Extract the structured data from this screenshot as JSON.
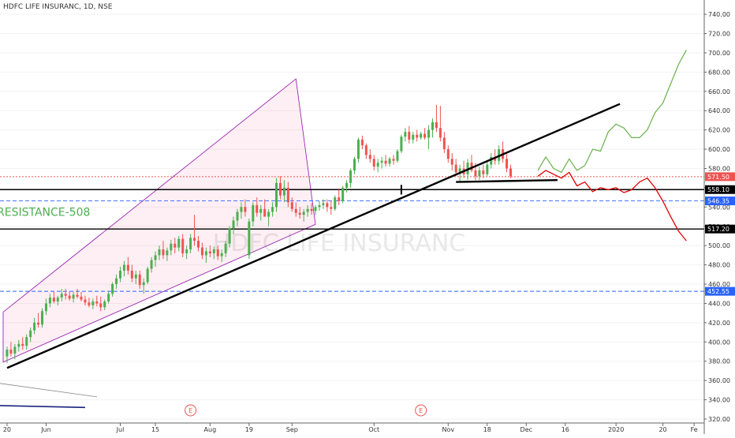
{
  "chart_data": {
    "type": "candlestick",
    "title": "HDFC LIFE INSURANC, 1D, NSE",
    "watermark": "HDFC LIFE INSURANC",
    "y_range": [
      315,
      750
    ],
    "y_ticks": [
      320,
      340,
      360,
      380,
      400,
      420,
      440,
      460,
      480,
      500,
      520,
      540,
      560,
      580,
      600,
      620,
      640,
      660,
      680,
      700,
      720,
      740
    ],
    "x_labels": [
      {
        "t": 0,
        "label": "20"
      },
      {
        "t": 10,
        "label": "Jun"
      },
      {
        "t": 29,
        "label": "Jul"
      },
      {
        "t": 38,
        "label": "15"
      },
      {
        "t": 52,
        "label": "Aug"
      },
      {
        "t": 62,
        "label": "19"
      },
      {
        "t": 73,
        "label": "Sep"
      },
      {
        "t": 94,
        "label": "Oct"
      },
      {
        "t": 113,
        "label": "Nov"
      },
      {
        "t": 123,
        "label": "18"
      },
      {
        "t": 133,
        "label": "Dec"
      },
      {
        "t": 143,
        "label": "16"
      },
      {
        "t": 156,
        "label": "2020"
      },
      {
        "t": 168,
        "label": "20"
      },
      {
        "t": 176,
        "label": "Fe"
      }
    ],
    "price_tags": [
      {
        "value": 571.5,
        "label": "571.50",
        "color": "#ef5350",
        "style": "dotted"
      },
      {
        "value": 558.1,
        "label": "558.10",
        "color": "#000000",
        "style": "solid"
      },
      {
        "value": 546.35,
        "label": "546.35",
        "color": "#2962ff",
        "style": "dashed"
      },
      {
        "value": 517.2,
        "label": "517.20",
        "color": "#000000",
        "style": "solid"
      },
      {
        "value": 452.55,
        "label": "452.55",
        "color": "#2962ff",
        "style": "dashed"
      }
    ],
    "annotations": {
      "resistance_text": "RESISTANCE-508",
      "earnings_markers": [
        {
          "t": 47,
          "label": "E"
        },
        {
          "t": 106,
          "label": "E"
        }
      ]
    },
    "colors": {
      "up": "#26a69a",
      "down": "#ef5350",
      "bull_path": "#6ab04c",
      "bear_path": "#e00000",
      "channel": "#9c27b0",
      "text_green": "#4caf50"
    },
    "candles": [
      {
        "o": 385,
        "h": 395,
        "l": 378,
        "c": 392
      },
      {
        "o": 392,
        "h": 400,
        "l": 385,
        "c": 388
      },
      {
        "o": 388,
        "h": 398,
        "l": 382,
        "c": 395
      },
      {
        "o": 395,
        "h": 402,
        "l": 390,
        "c": 398
      },
      {
        "o": 398,
        "h": 405,
        "l": 392,
        "c": 396
      },
      {
        "o": 396,
        "h": 408,
        "l": 392,
        "c": 405
      },
      {
        "o": 405,
        "h": 415,
        "l": 400,
        "c": 412
      },
      {
        "o": 412,
        "h": 425,
        "l": 408,
        "c": 420
      },
      {
        "o": 420,
        "h": 430,
        "l": 415,
        "c": 418
      },
      {
        "o": 418,
        "h": 435,
        "l": 415,
        "c": 432
      },
      {
        "o": 432,
        "h": 445,
        "l": 428,
        "c": 440
      },
      {
        "o": 440,
        "h": 450,
        "l": 436,
        "c": 446
      },
      {
        "o": 446,
        "h": 452,
        "l": 440,
        "c": 442
      },
      {
        "o": 442,
        "h": 448,
        "l": 438,
        "c": 446
      },
      {
        "o": 446,
        "h": 455,
        "l": 442,
        "c": 450
      },
      {
        "o": 450,
        "h": 455,
        "l": 444,
        "c": 448
      },
      {
        "o": 448,
        "h": 453,
        "l": 443,
        "c": 445
      },
      {
        "o": 445,
        "h": 452,
        "l": 441,
        "c": 449
      },
      {
        "o": 449,
        "h": 455,
        "l": 445,
        "c": 447
      },
      {
        "o": 447,
        "h": 452,
        "l": 442,
        "c": 444
      },
      {
        "o": 444,
        "h": 448,
        "l": 438,
        "c": 441
      },
      {
        "o": 441,
        "h": 446,
        "l": 436,
        "c": 438
      },
      {
        "o": 438,
        "h": 445,
        "l": 434,
        "c": 442
      },
      {
        "o": 442,
        "h": 448,
        "l": 437,
        "c": 440
      },
      {
        "o": 440,
        "h": 447,
        "l": 432,
        "c": 436
      },
      {
        "o": 436,
        "h": 444,
        "l": 433,
        "c": 442
      },
      {
        "o": 442,
        "h": 452,
        "l": 440,
        "c": 450
      },
      {
        "o": 450,
        "h": 462,
        "l": 447,
        "c": 460
      },
      {
        "o": 460,
        "h": 470,
        "l": 455,
        "c": 466
      },
      {
        "o": 466,
        "h": 478,
        "l": 462,
        "c": 474
      },
      {
        "o": 474,
        "h": 484,
        "l": 468,
        "c": 480
      },
      {
        "o": 480,
        "h": 488,
        "l": 470,
        "c": 474
      },
      {
        "o": 474,
        "h": 480,
        "l": 462,
        "c": 466
      },
      {
        "o": 466,
        "h": 474,
        "l": 460,
        "c": 470
      },
      {
        "o": 470,
        "h": 474,
        "l": 455,
        "c": 459
      },
      {
        "o": 459,
        "h": 466,
        "l": 450,
        "c": 462
      },
      {
        "o": 462,
        "h": 478,
        "l": 460,
        "c": 476
      },
      {
        "o": 476,
        "h": 488,
        "l": 472,
        "c": 485
      },
      {
        "o": 485,
        "h": 494,
        "l": 478,
        "c": 490
      },
      {
        "o": 490,
        "h": 500,
        "l": 485,
        "c": 496
      },
      {
        "o": 496,
        "h": 505,
        "l": 486,
        "c": 490
      },
      {
        "o": 490,
        "h": 498,
        "l": 484,
        "c": 495
      },
      {
        "o": 495,
        "h": 506,
        "l": 490,
        "c": 502
      },
      {
        "o": 502,
        "h": 508,
        "l": 492,
        "c": 498
      },
      {
        "o": 498,
        "h": 510,
        "l": 494,
        "c": 507
      },
      {
        "o": 507,
        "h": 512,
        "l": 488,
        "c": 492
      },
      {
        "o": 492,
        "h": 500,
        "l": 486,
        "c": 496
      },
      {
        "o": 496,
        "h": 512,
        "l": 492,
        "c": 508
      },
      {
        "o": 508,
        "h": 532,
        "l": 500,
        "c": 505
      },
      {
        "o": 505,
        "h": 510,
        "l": 494,
        "c": 498
      },
      {
        "o": 498,
        "h": 503,
        "l": 486,
        "c": 490
      },
      {
        "o": 490,
        "h": 498,
        "l": 482,
        "c": 494
      },
      {
        "o": 494,
        "h": 500,
        "l": 488,
        "c": 492
      },
      {
        "o": 492,
        "h": 499,
        "l": 486,
        "c": 496
      },
      {
        "o": 496,
        "h": 500,
        "l": 485,
        "c": 489
      },
      {
        "o": 489,
        "h": 496,
        "l": 483,
        "c": 492
      },
      {
        "o": 492,
        "h": 505,
        "l": 488,
        "c": 502
      },
      {
        "o": 502,
        "h": 520,
        "l": 498,
        "c": 518
      },
      {
        "o": 518,
        "h": 530,
        "l": 512,
        "c": 526
      },
      {
        "o": 526,
        "h": 538,
        "l": 520,
        "c": 535
      },
      {
        "o": 535,
        "h": 545,
        "l": 528,
        "c": 540
      },
      {
        "o": 540,
        "h": 548,
        "l": 530,
        "c": 535
      },
      {
        "o": 490,
        "h": 528,
        "l": 486,
        "c": 525
      },
      {
        "o": 525,
        "h": 545,
        "l": 520,
        "c": 542
      },
      {
        "o": 542,
        "h": 550,
        "l": 530,
        "c": 534
      },
      {
        "o": 534,
        "h": 542,
        "l": 526,
        "c": 538
      },
      {
        "o": 538,
        "h": 548,
        "l": 532,
        "c": 530
      },
      {
        "o": 530,
        "h": 538,
        "l": 520,
        "c": 535
      },
      {
        "o": 535,
        "h": 545,
        "l": 530,
        "c": 540
      },
      {
        "o": 540,
        "h": 570,
        "l": 535,
        "c": 565
      },
      {
        "o": 565,
        "h": 572,
        "l": 548,
        "c": 552
      },
      {
        "o": 552,
        "h": 568,
        "l": 545,
        "c": 560
      },
      {
        "o": 560,
        "h": 566,
        "l": 540,
        "c": 545
      },
      {
        "o": 545,
        "h": 550,
        "l": 535,
        "c": 538
      },
      {
        "o": 538,
        "h": 545,
        "l": 530,
        "c": 534
      },
      {
        "o": 534,
        "h": 540,
        "l": 528,
        "c": 532
      },
      {
        "o": 532,
        "h": 538,
        "l": 525,
        "c": 535
      },
      {
        "o": 535,
        "h": 542,
        "l": 530,
        "c": 538
      },
      {
        "o": 538,
        "h": 544,
        "l": 532,
        "c": 536
      },
      {
        "o": 536,
        "h": 542,
        "l": 532,
        "c": 540
      },
      {
        "o": 540,
        "h": 546,
        "l": 536,
        "c": 542
      },
      {
        "o": 542,
        "h": 548,
        "l": 538,
        "c": 544
      },
      {
        "o": 544,
        "h": 548,
        "l": 535,
        "c": 540
      },
      {
        "o": 540,
        "h": 546,
        "l": 532,
        "c": 538
      },
      {
        "o": 538,
        "h": 552,
        "l": 536,
        "c": 550
      },
      {
        "o": 550,
        "h": 558,
        "l": 542,
        "c": 546
      },
      {
        "o": 546,
        "h": 562,
        "l": 544,
        "c": 560
      },
      {
        "o": 560,
        "h": 568,
        "l": 555,
        "c": 565
      },
      {
        "o": 565,
        "h": 580,
        "l": 560,
        "c": 578
      },
      {
        "o": 578,
        "h": 592,
        "l": 574,
        "c": 590
      },
      {
        "o": 590,
        "h": 612,
        "l": 586,
        "c": 610
      },
      {
        "o": 610,
        "h": 614,
        "l": 600,
        "c": 604
      },
      {
        "o": 604,
        "h": 606,
        "l": 590,
        "c": 594
      },
      {
        "o": 594,
        "h": 600,
        "l": 586,
        "c": 590
      },
      {
        "o": 590,
        "h": 594,
        "l": 578,
        "c": 582
      },
      {
        "o": 582,
        "h": 590,
        "l": 576,
        "c": 586
      },
      {
        "o": 586,
        "h": 592,
        "l": 580,
        "c": 588
      },
      {
        "o": 588,
        "h": 594,
        "l": 582,
        "c": 585
      },
      {
        "o": 585,
        "h": 592,
        "l": 582,
        "c": 590
      },
      {
        "o": 590,
        "h": 594,
        "l": 584,
        "c": 588
      },
      {
        "o": 588,
        "h": 600,
        "l": 586,
        "c": 598
      },
      {
        "o": 598,
        "h": 615,
        "l": 596,
        "c": 613
      },
      {
        "o": 613,
        "h": 622,
        "l": 608,
        "c": 618
      },
      {
        "o": 618,
        "h": 624,
        "l": 606,
        "c": 610
      },
      {
        "o": 610,
        "h": 618,
        "l": 606,
        "c": 615
      },
      {
        "o": 615,
        "h": 620,
        "l": 608,
        "c": 612
      },
      {
        "o": 612,
        "h": 618,
        "l": 610,
        "c": 616
      },
      {
        "o": 616,
        "h": 622,
        "l": 610,
        "c": 612
      },
      {
        "o": 612,
        "h": 625,
        "l": 600,
        "c": 620
      },
      {
        "o": 620,
        "h": 632,
        "l": 612,
        "c": 628
      },
      {
        "o": 628,
        "h": 646,
        "l": 618,
        "c": 622
      },
      {
        "o": 622,
        "h": 645,
        "l": 608,
        "c": 612
      },
      {
        "o": 612,
        "h": 618,
        "l": 596,
        "c": 600
      },
      {
        "o": 600,
        "h": 604,
        "l": 586,
        "c": 590
      },
      {
        "o": 590,
        "h": 596,
        "l": 578,
        "c": 584
      },
      {
        "o": 584,
        "h": 590,
        "l": 572,
        "c": 576
      },
      {
        "o": 576,
        "h": 584,
        "l": 566,
        "c": 580
      },
      {
        "o": 580,
        "h": 588,
        "l": 570,
        "c": 574
      },
      {
        "o": 574,
        "h": 590,
        "l": 568,
        "c": 586
      },
      {
        "o": 586,
        "h": 594,
        "l": 576,
        "c": 578
      },
      {
        "o": 578,
        "h": 586,
        "l": 568,
        "c": 572
      },
      {
        "o": 572,
        "h": 582,
        "l": 568,
        "c": 578
      },
      {
        "o": 578,
        "h": 584,
        "l": 570,
        "c": 574
      },
      {
        "o": 574,
        "h": 588,
        "l": 572,
        "c": 584
      },
      {
        "o": 584,
        "h": 596,
        "l": 580,
        "c": 592
      },
      {
        "o": 592,
        "h": 600,
        "l": 584,
        "c": 588
      },
      {
        "o": 588,
        "h": 604,
        "l": 584,
        "c": 600
      },
      {
        "o": 600,
        "h": 608,
        "l": 586,
        "c": 590
      },
      {
        "o": 590,
        "h": 595,
        "l": 576,
        "c": 580
      },
      {
        "o": 580,
        "h": 584,
        "l": 570,
        "c": 572
      }
    ],
    "bull_projection": [
      [
        137,
        578
      ],
      [
        139,
        592
      ],
      [
        141,
        580
      ],
      [
        143,
        576
      ],
      [
        145,
        590
      ],
      [
        147,
        578
      ],
      [
        149,
        583
      ],
      [
        151,
        600
      ],
      [
        153,
        598
      ],
      [
        155,
        618
      ],
      [
        157,
        626
      ],
      [
        159,
        622
      ],
      [
        161,
        612
      ],
      [
        163,
        612
      ],
      [
        165,
        620
      ],
      [
        167,
        638
      ],
      [
        169,
        648
      ],
      [
        171,
        668
      ],
      [
        173,
        688
      ],
      [
        175,
        703
      ]
    ],
    "bear_projection": [
      [
        137,
        572
      ],
      [
        139,
        578
      ],
      [
        141,
        574
      ],
      [
        143,
        570
      ],
      [
        145,
        576
      ],
      [
        147,
        562
      ],
      [
        149,
        566
      ],
      [
        151,
        556
      ],
      [
        153,
        560
      ],
      [
        155,
        558
      ],
      [
        157,
        560
      ],
      [
        159,
        555
      ],
      [
        161,
        558
      ],
      [
        163,
        566
      ],
      [
        165,
        570
      ],
      [
        167,
        560
      ],
      [
        169,
        546
      ],
      [
        171,
        530
      ],
      [
        173,
        515
      ],
      [
        175,
        505
      ]
    ]
  }
}
